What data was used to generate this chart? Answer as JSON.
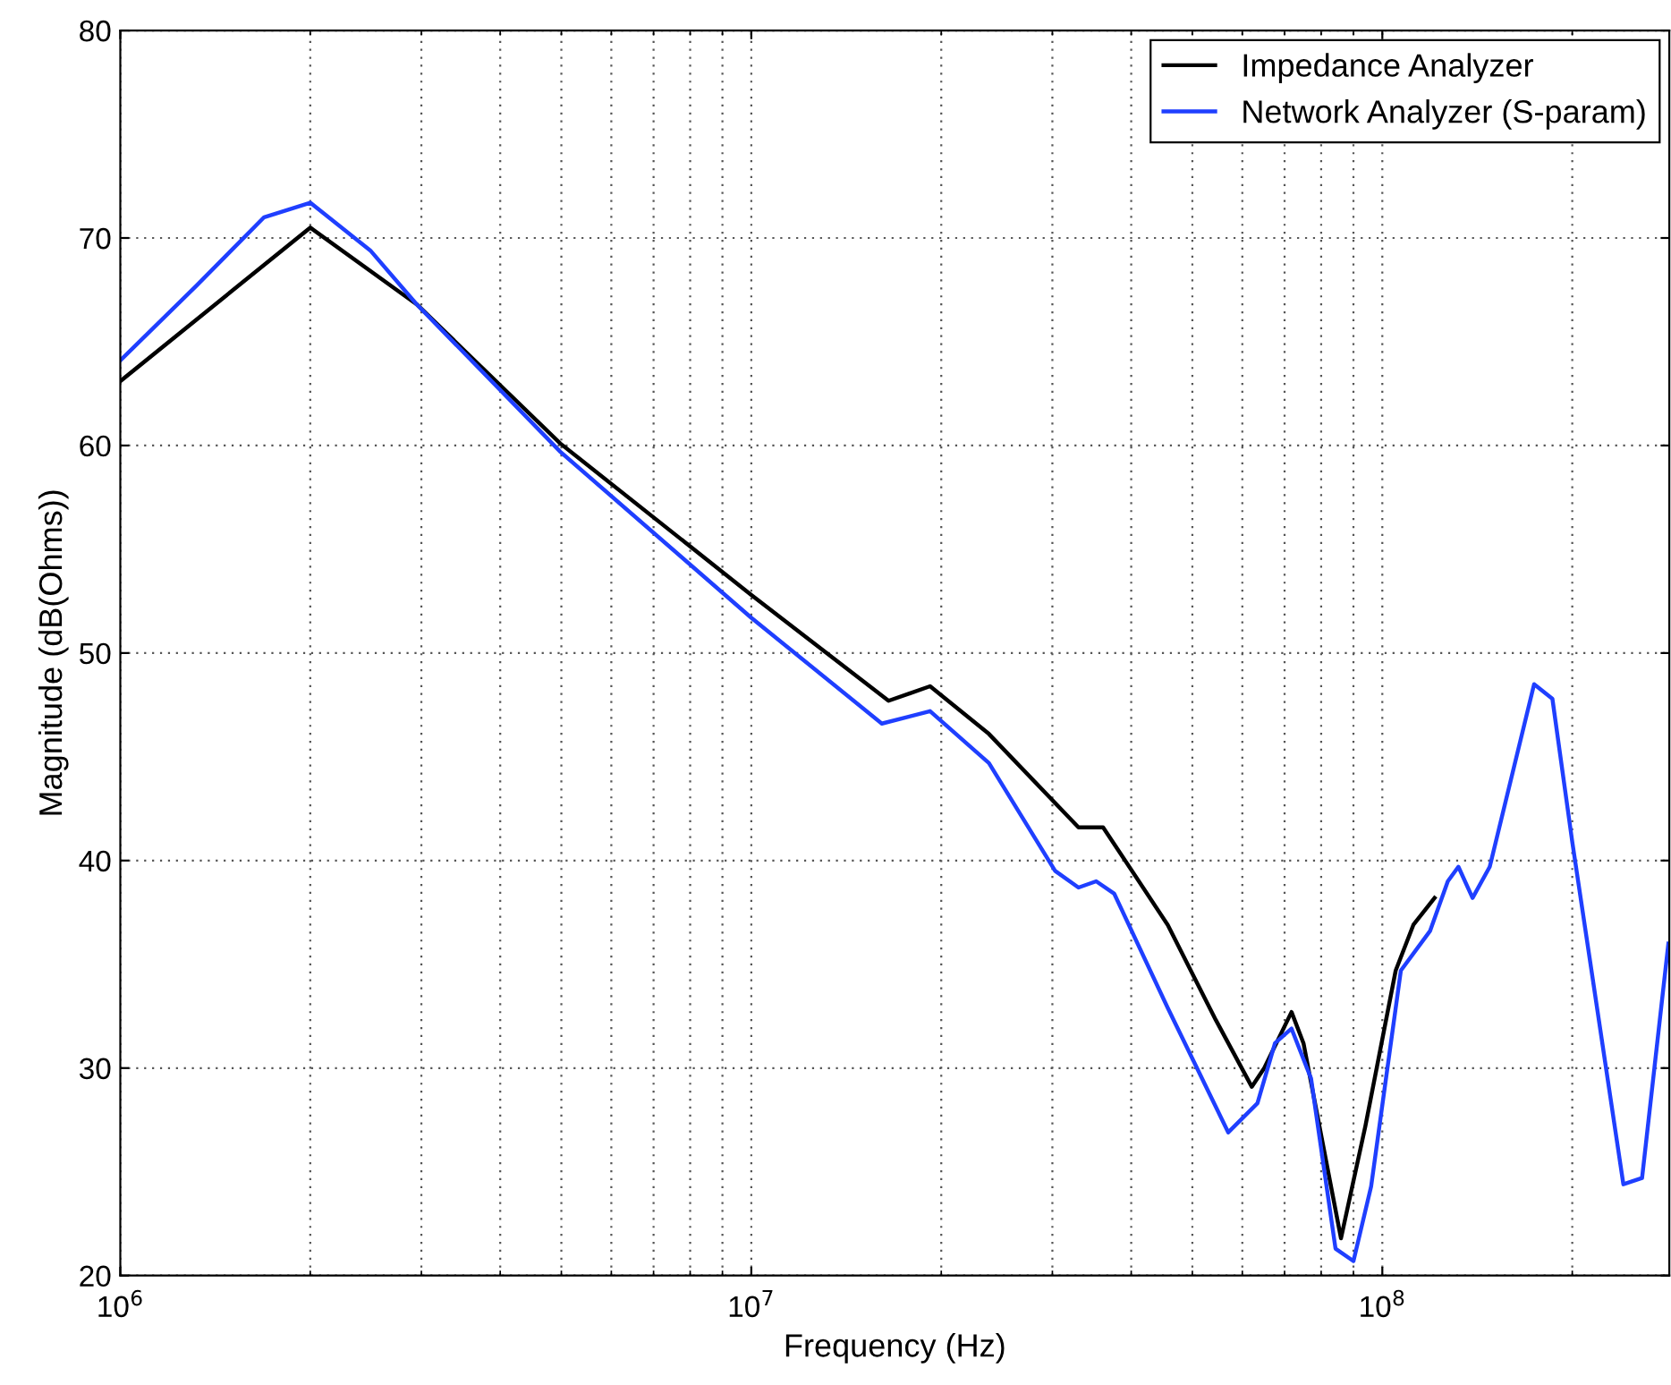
{
  "chart_data": {
    "type": "line",
    "xlabel": "Frequency (Hz)",
    "ylabel": "Magnitude (dB(Ohms))",
    "log": "x",
    "grid": true,
    "legend": "top right",
    "line_style": "solid",
    "marker": "none",
    "xlim": [
      1000000,
      285000000
    ],
    "xticks": [
      {
        "value": 1000000,
        "label": "10$^{6}$"
      },
      {
        "value": 10000000,
        "label": "10$^{7}$"
      },
      {
        "value": 100000000,
        "label": "10$^{8}$"
      }
    ],
    "ylim": [
      20,
      80
    ],
    "yticks": [
      20,
      30,
      40,
      50,
      60,
      70,
      80
    ],
    "series": [
      {
        "name": "Impedance Analyzer",
        "color": "#000000",
        "x": [
          1000000,
          2000000,
          2950000,
          4980000,
          10000000,
          16500000,
          19200000,
          23800000,
          33000000,
          36100000,
          45700000,
          54500000,
          62100000,
          65000000,
          71800000,
          75000000,
          86000000,
          94000000,
          105000000,
          112000000,
          121000000
        ],
        "values": [
          63.1,
          70.5,
          66.8,
          60.1,
          52.8,
          47.7,
          48.4,
          46.1,
          41.6,
          41.6,
          36.9,
          32.3,
          29.1,
          30.0,
          32.7,
          31.2,
          21.8,
          27.2,
          34.7,
          36.9,
          38.2
        ]
      },
      {
        "name": "Network Analyzer (S-param)",
        "color": "#1f3fff",
        "x": [
          1000000,
          1320000,
          1690000,
          2000000,
          2490000,
          2950000,
          4980000,
          10000000,
          16100000,
          19200000,
          23800000,
          30300000,
          33000000,
          35200000,
          37600000,
          45700000,
          57000000,
          63400000,
          67600000,
          71800000,
          77100000,
          84300000,
          90000000,
          96000000,
          107000000,
          119000000,
          127000000,
          132000000,
          139000000,
          148000000,
          174000000,
          186000000,
          200000000,
          241000000,
          258000000,
          284000000
        ],
        "values": [
          64.1,
          67.7,
          71.0,
          71.7,
          69.4,
          66.8,
          59.7,
          51.7,
          46.6,
          47.2,
          44.7,
          39.5,
          38.7,
          39.0,
          38.4,
          32.9,
          26.9,
          28.3,
          31.2,
          31.9,
          29.5,
          21.3,
          20.7,
          24.3,
          34.7,
          36.6,
          39.0,
          39.7,
          38.2,
          39.7,
          48.5,
          47.8,
          40.9,
          24.4,
          24.7,
          36.0
        ]
      }
    ]
  }
}
